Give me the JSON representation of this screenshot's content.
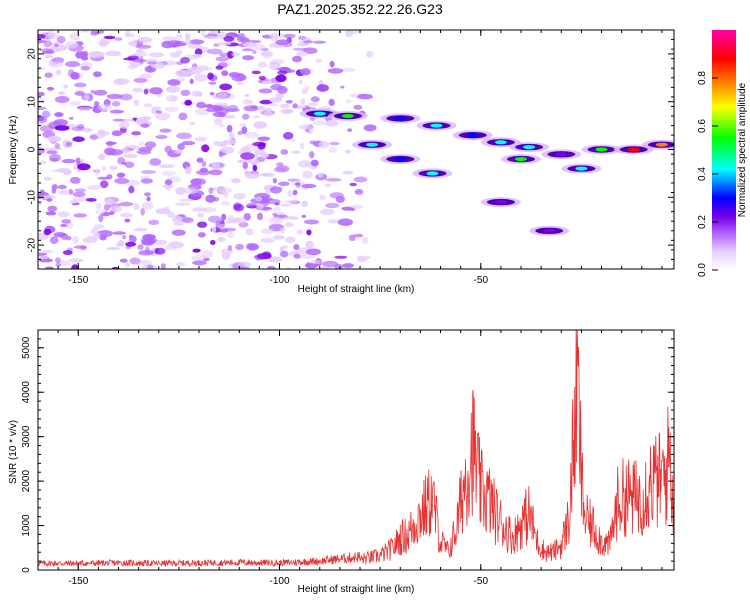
{
  "title": "PAZ1.2025.352.22.26.G23",
  "chart_data": [
    {
      "type": "heatmap",
      "title": "PAZ1.2025.352.22.26.G23",
      "xlabel": "Height of straight line (km)",
      "ylabel": "Frequency (Hz)",
      "xlim": [
        -160,
        -2
      ],
      "ylim": [
        -25,
        25
      ],
      "x_ticks": [
        -150,
        -100,
        -50
      ],
      "y_ticks": [
        20,
        10,
        0,
        -10,
        -20
      ],
      "colorbar": {
        "label": "Normalized spectral amplitude",
        "range": [
          0,
          1
        ],
        "ticks": [
          "0.0",
          "0.2",
          "0.4",
          "0.6",
          "0.8"
        ],
        "colors": [
          "#ffffff",
          "#e6ccff",
          "#b266ff",
          "#7a00e6",
          "#0000ff",
          "#00ffff",
          "#00ff00",
          "#ffff00",
          "#ff8000",
          "#ff0000",
          "#ff00aa"
        ]
      },
      "signal_track": [
        {
          "x": -90,
          "y": 7.5,
          "a": 0.45
        },
        {
          "x": -83,
          "y": 7.0,
          "a": 0.55
        },
        {
          "x": -70,
          "y": 6.5,
          "a": 0.35
        },
        {
          "x": -61,
          "y": 5.0,
          "a": 0.5
        },
        {
          "x": -52,
          "y": 3.0,
          "a": 0.35
        },
        {
          "x": -45,
          "y": 1.5,
          "a": 0.5
        },
        {
          "x": -38,
          "y": 0.5,
          "a": 0.45
        },
        {
          "x": -30,
          "y": -1.0,
          "a": 0.3
        },
        {
          "x": -20,
          "y": 0.0,
          "a": 0.55
        },
        {
          "x": -12,
          "y": 0.0,
          "a": 0.9
        },
        {
          "x": -5,
          "y": 1.0,
          "a": 0.75
        },
        {
          "x": -77,
          "y": 1.0,
          "a": 0.45
        },
        {
          "x": -70,
          "y": -2.0,
          "a": 0.4
        },
        {
          "x": -62,
          "y": -5.0,
          "a": 0.5
        },
        {
          "x": -40,
          "y": -2.0,
          "a": 0.6
        },
        {
          "x": -25,
          "y": -4.0,
          "a": 0.5
        },
        {
          "x": -45,
          "y": -11.0,
          "a": 0.3
        },
        {
          "x": -33,
          "y": -17.0,
          "a": 0.3
        }
      ]
    },
    {
      "type": "line",
      "xlabel": "Height of straight line (km)",
      "ylabel": "SNR (10 * v/v)",
      "xlim": [
        -160,
        -2
      ],
      "ylim": [
        0,
        5400
      ],
      "x_ticks": [
        -150,
        -100,
        -50
      ],
      "y_ticks": [
        0,
        1000,
        2000,
        3000,
        4000,
        5000
      ],
      "color": "#e63232",
      "series": [
        {
          "name": "SNR",
          "x": [
            -160,
            -150,
            -140,
            -130,
            -120,
            -110,
            -100,
            -90,
            -85,
            -80,
            -75,
            -72,
            -70,
            -68,
            -66,
            -64,
            -62,
            -60,
            -58,
            -56,
            -54,
            -52,
            -50,
            -48,
            -46,
            -44,
            -42,
            -40,
            -38,
            -36,
            -34,
            -32,
            -30,
            -28,
            -27,
            -26,
            -25,
            -24,
            -22,
            -20,
            -18,
            -16,
            -14,
            -12,
            -10,
            -8,
            -6,
            -4,
            -3,
            -2
          ],
          "y": [
            150,
            150,
            160,
            150,
            160,
            170,
            160,
            200,
            250,
            300,
            400,
            600,
            900,
            1000,
            1400,
            1700,
            2000,
            800,
            500,
            1200,
            2500,
            3500,
            2200,
            2000,
            1500,
            1200,
            900,
            1300,
            1600,
            800,
            500,
            500,
            700,
            1500,
            3500,
            5400,
            2500,
            1400,
            1200,
            800,
            700,
            1900,
            2100,
            2000,
            2100,
            2500,
            2500,
            2600,
            3500,
            1200
          ]
        }
      ]
    }
  ]
}
